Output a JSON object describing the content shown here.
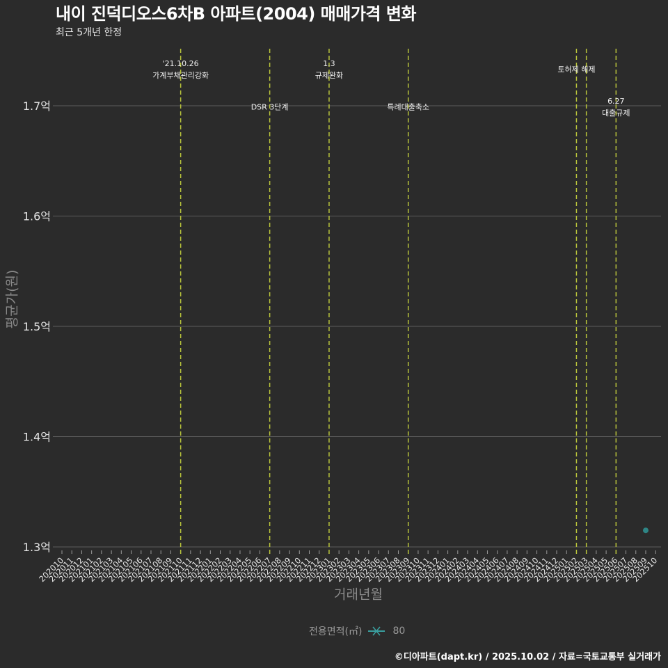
{
  "header": {
    "title": "내이 진덕디오스6차B 아파트(2004) 매매가격 변화",
    "subtitle": "최근 5개년 한정"
  },
  "axes": {
    "xlabel": "거래년월",
    "ylabel": "평균가(원)"
  },
  "legend": {
    "title": "전용면적(㎡)",
    "items": [
      {
        "label": "80",
        "color": "#3a9e9e",
        "icon": "line-cross-icon"
      }
    ]
  },
  "footer": {
    "credit": "©디아파트(dapt.kr) / 2025.10.02 / 자료=국토교통부 실거래가"
  },
  "colors": {
    "background": "#2b2b2b",
    "grid": "#5e5e5e",
    "event_line": "#b9c43b",
    "point": "#2f8f8f",
    "tick_label": "#e4e4e4",
    "annotation_text": "#f0f0f0"
  },
  "chart_data": {
    "type": "scatter",
    "title": "내이 진덕디오스6차B 아파트(2004) 매매가격 변화",
    "subtitle": "최근 5개년 한정",
    "xlabel": "거래년월",
    "ylabel": "평균가(원)",
    "y_unit": "억원",
    "x": [
      "202010",
      "202011",
      "202012",
      "202101",
      "202102",
      "202103",
      "202104",
      "202105",
      "202106",
      "202107",
      "202108",
      "202109",
      "202110",
      "202111",
      "202112",
      "202201",
      "202202",
      "202203",
      "202204",
      "202205",
      "202206",
      "202207",
      "202208",
      "202209",
      "202210",
      "202211",
      "202212",
      "202301",
      "202302",
      "202303",
      "202304",
      "202305",
      "202306",
      "202307",
      "202308",
      "202309",
      "202310",
      "202311",
      "202312",
      "202401",
      "202402",
      "202403",
      "202404",
      "202405",
      "202406",
      "202407",
      "202408",
      "202409",
      "202410",
      "202411",
      "202412",
      "202501",
      "202502",
      "202503",
      "202504",
      "202505",
      "202506",
      "202507",
      "202508",
      "202509",
      "202510"
    ],
    "yticks": [
      1.3,
      1.4,
      1.5,
      1.6,
      1.7
    ],
    "ytick_labels": [
      "1.3억",
      "1.4억",
      "1.5억",
      "1.6억",
      "1.7억"
    ],
    "ylim": [
      1.293,
      1.752
    ],
    "grid": true,
    "legend_position": "bottom",
    "series": [
      {
        "name": "80",
        "color": "#2f8f8f",
        "points": [
          {
            "x": "202509",
            "y": 1.315
          }
        ]
      }
    ],
    "annotations": [
      {
        "x": "202110",
        "lines": [
          "'21.10.26",
          "가계부채관리강화"
        ],
        "label_y": 1.733
      },
      {
        "x": "202207",
        "lines": [
          "DSR 3단계"
        ],
        "label_y": 1.699
      },
      {
        "x": "202301",
        "lines": [
          "1.3",
          "규제완화"
        ],
        "label_y": 1.733
      },
      {
        "x": "202309",
        "lines": [
          "특례대출축소"
        ],
        "label_y": 1.699
      },
      {
        "x": "202502",
        "lines": [
          "토허제 해제"
        ],
        "label_y": 1.733
      },
      {
        "x": "202503",
        "lines": [],
        "label_y": null
      },
      {
        "x": "202506",
        "lines": [
          "6.27",
          "대출규제"
        ],
        "label_y": 1.699
      }
    ]
  }
}
